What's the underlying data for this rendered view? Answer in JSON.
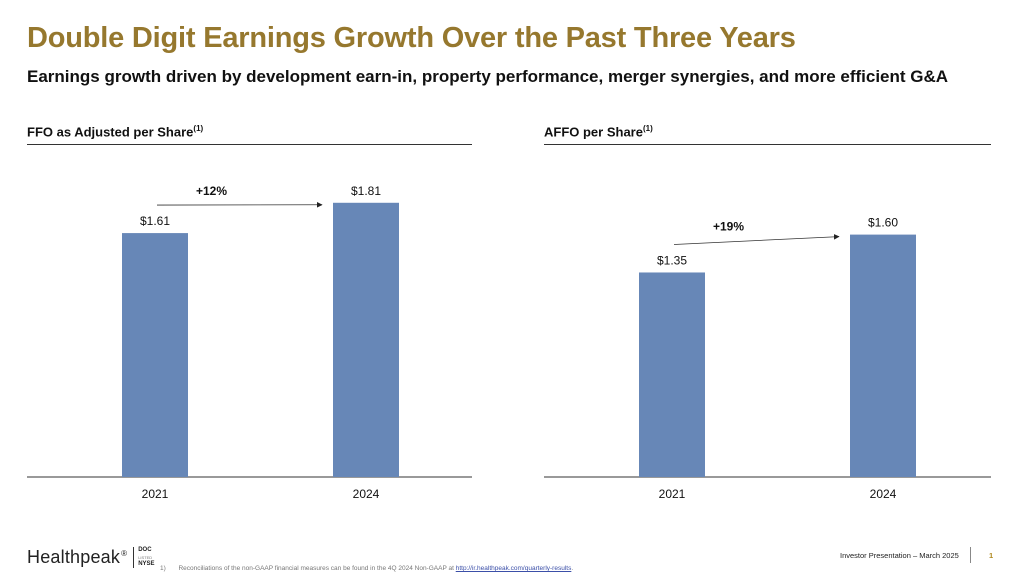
{
  "title": "Double Digit Earnings Growth Over the Past Three Years",
  "subtitle": "Earnings growth driven by development earn-in, property performance, merger synergies, and more efficient G&A",
  "colors": {
    "title": "#96782e",
    "bar": "#6787b7",
    "page_number": "#b0891f"
  },
  "chart_data": [
    {
      "type": "bar",
      "title": "FFO as Adjusted per Share",
      "title_footnote_marker": "(1)",
      "categories": [
        "2021",
        "2024"
      ],
      "values": [
        1.61,
        1.81
      ],
      "value_labels": [
        "$1.61",
        "$1.81"
      ],
      "growth_annotation": "+12%",
      "xlabel": "",
      "ylabel": "",
      "grid": false
    },
    {
      "type": "bar",
      "title": "AFFO per Share",
      "title_footnote_marker": "(1)",
      "categories": [
        "2021",
        "2024"
      ],
      "values": [
        1.35,
        1.6
      ],
      "value_labels": [
        "$1.35",
        "$1.60"
      ],
      "growth_annotation": "+19%",
      "xlabel": "",
      "ylabel": "",
      "grid": false
    }
  ],
  "footer": {
    "logo_text": "Healthpeak",
    "logo_mark": "®",
    "ticker": "DOC",
    "ticker_exchange_small": "LISTED",
    "exchange": "NYSE",
    "footnote_number": "1)",
    "footnote_text": "Reconciliations of the non-GAAP financial measures can be found in the 4Q 2024 Non-GAAP at",
    "footnote_link": "http://ir.healthpeak.com/quarterly-results",
    "presentation_label": "Investor Presentation – March 2025",
    "page_number": "1"
  }
}
